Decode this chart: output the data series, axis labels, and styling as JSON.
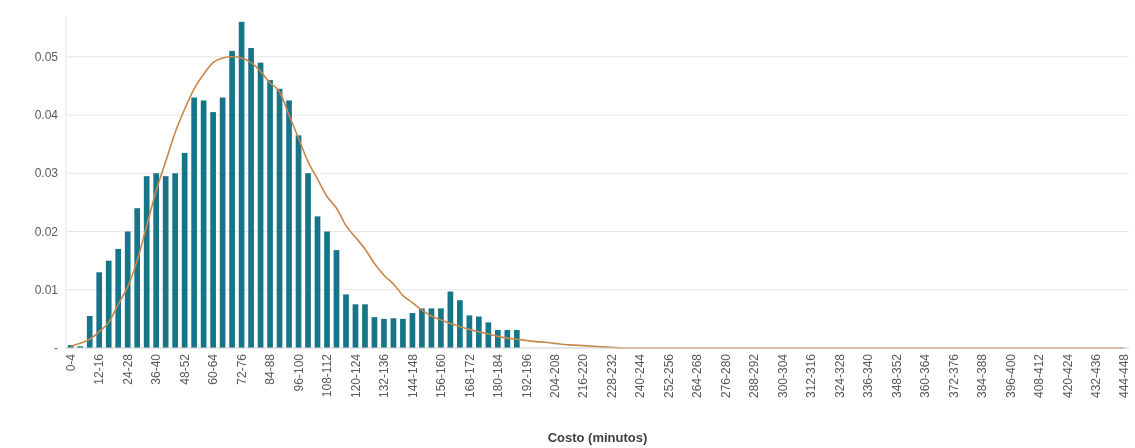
{
  "chart_data": {
    "type": "bar",
    "xlabel": "Costo (minutos)",
    "categories": [
      "0-4",
      null,
      null,
      "12-16",
      null,
      null,
      "24-28",
      null,
      null,
      "36-40",
      null,
      null,
      "48-52",
      null,
      null,
      "60-64",
      null,
      null,
      "72-76",
      null,
      null,
      "84-88",
      null,
      null,
      "96-100",
      null,
      null,
      "108-112",
      null,
      null,
      "120-124",
      null,
      null,
      "132-136",
      null,
      null,
      "144-148",
      null,
      null,
      "156-160",
      null,
      null,
      "168-172",
      null,
      null,
      "180-184",
      null,
      null,
      "192-196",
      null,
      null,
      "204-208",
      null,
      null,
      "216-220",
      null,
      null,
      "228-232",
      null,
      null,
      "240-244",
      null,
      null,
      "252-256",
      null,
      null,
      "264-268",
      null,
      null,
      "276-280",
      null,
      null,
      "288-292",
      null,
      null,
      "300-304",
      null,
      null,
      "312-316",
      null,
      null,
      "324-328",
      null,
      null,
      "336-340",
      null,
      null,
      "348-352",
      null,
      null,
      "360-364",
      null,
      null,
      "372-376",
      null,
      null,
      "384-388",
      null,
      null,
      "396-400",
      null,
      null,
      "408-412",
      null,
      null,
      "420-424",
      null,
      null,
      "432-436",
      null,
      null,
      "444-448"
    ],
    "series": [
      {
        "color": "#17758a",
        "values": [
          0.0005,
          0.0003,
          0.0055,
          0.013,
          0.015,
          0.017,
          0.02,
          0.024,
          0.0295,
          0.03,
          0.0295,
          0.03,
          0.0335,
          0.043,
          0.0425,
          0.0405,
          0.043,
          0.051,
          0.056,
          0.0515,
          0.049,
          0.046,
          0.0445,
          0.0425,
          0.0365,
          0.03,
          0.0226,
          0.02,
          0.0168,
          0.0092,
          0.0075,
          0.0075,
          0.0053,
          0.005,
          0.0051,
          0.005,
          0.006,
          0.0068,
          0.0068,
          0.0068,
          0.0097,
          0.0082,
          0.0056,
          0.0054,
          0.0044,
          0.0031,
          0.0031,
          0.0031,
          0,
          0,
          0,
          0,
          0,
          0,
          0,
          0,
          0,
          0,
          0,
          0,
          0,
          0,
          0,
          0,
          0,
          0,
          0,
          0,
          0,
          0,
          0,
          0,
          0,
          0,
          0,
          0,
          0,
          0,
          0,
          0,
          0,
          0,
          0,
          0,
          0,
          0,
          0,
          0,
          0,
          0,
          0,
          0,
          0,
          0,
          0,
          0,
          0,
          0,
          0,
          0,
          0,
          0,
          0,
          0,
          0,
          0,
          0,
          0,
          0,
          0,
          0,
          0
        ]
      },
      {
        "type": "line",
        "color": "#c8874a",
        "values": [
          0.0003,
          0.0008,
          0.0015,
          0.0028,
          0.0044,
          0.0075,
          0.0105,
          0.015,
          0.021,
          0.027,
          0.032,
          0.037,
          0.041,
          0.0445,
          0.047,
          0.049,
          0.0498,
          0.05,
          0.0498,
          0.049,
          0.0475,
          0.0455,
          0.044,
          0.04,
          0.036,
          0.032,
          0.029,
          0.026,
          0.024,
          0.021,
          0.019,
          0.017,
          0.0145,
          0.0125,
          0.011,
          0.009,
          0.0078,
          0.0065,
          0.0055,
          0.0048,
          0.0042,
          0.0037,
          0.0032,
          0.0028,
          0.0024,
          0.002,
          0.0017,
          0.0015,
          0.0013,
          0.0011,
          0.001,
          0.0008,
          0.0006,
          0.0005,
          0.0004,
          0.0003,
          0.0002,
          0.0001,
          0,
          0,
          0,
          0,
          0,
          0,
          0,
          0,
          0,
          0,
          0,
          0,
          0,
          0,
          0,
          0,
          0,
          0,
          0,
          0,
          0,
          0,
          0,
          0,
          0,
          0,
          0,
          0,
          0,
          0,
          0,
          0,
          0,
          0,
          0,
          0,
          0,
          0,
          0,
          0,
          0,
          0,
          0,
          0,
          0,
          0,
          0,
          0,
          0,
          0,
          0,
          0,
          0,
          0
        ]
      }
    ],
    "ylim": [
      0,
      0.057
    ],
    "yticks": [
      {
        "value": 0,
        "label": "-"
      },
      0.01,
      0.02,
      0.03,
      0.04,
      0.05
    ],
    "grid": "y"
  }
}
